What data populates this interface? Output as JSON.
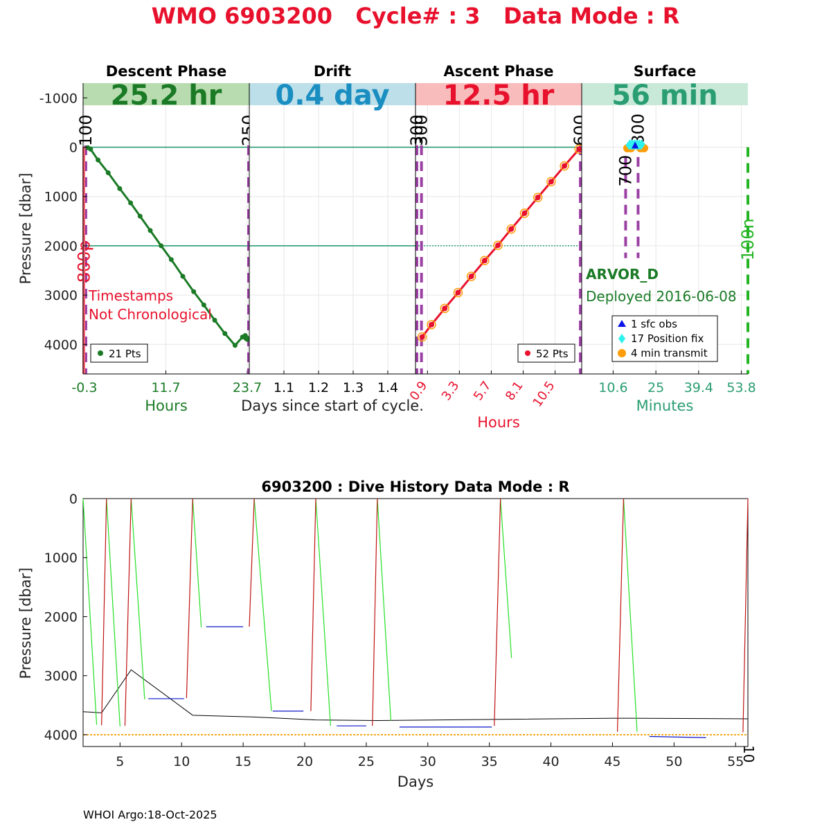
{
  "header": {
    "title": "WMO 6903200   Cycle# : 3   Data Mode : R",
    "title_color": "#e8112d"
  },
  "footer": {
    "credit": "WHOI Argo:18-Oct-2025"
  },
  "chart_data": [
    {
      "type": "line",
      "ylabel": "Pressure [dbar]",
      "ylim": [
        4600,
        -1300
      ],
      "yticks": [
        -1000,
        0,
        1000,
        2000,
        3000,
        4000
      ],
      "reference_lines": [
        0,
        2000
      ],
      "panels": [
        {
          "phase": "Descent Phase",
          "duration": "25.2 hr",
          "band_color": "#b8dcb0",
          "text_color": "#1a7a25",
          "xlim": [
            -0.5,
            24.0
          ],
          "xticks": [
            -0.3,
            11.7,
            23.7
          ],
          "xlabel": "Hours",
          "markers": [
            {
              "label": "100",
              "x": -0.1,
              "color": "#000000"
            },
            {
              "label": "250",
              "x": 23.9,
              "color": "#000000"
            },
            {
              "label": "800p",
              "x": -0.35,
              "color": "#e8112d"
            }
          ],
          "note_lines": [
            "Timestamps",
            "Not Chronological"
          ],
          "legend": "21 Pts",
          "series_color": "#1a7a25",
          "x": [
            0.2,
            0.6,
            1.7,
            3.2,
            4.9,
            6.5,
            7.9,
            9.4,
            11.0,
            12.5,
            14.2,
            15.8,
            17.3,
            18.9,
            20.4,
            21.9,
            23.0,
            23.5,
            23.7,
            23.6,
            23.4
          ],
          "y": [
            10,
            40,
            260,
            520,
            840,
            1130,
            1400,
            1690,
            2000,
            2280,
            2620,
            2930,
            3200,
            3510,
            3780,
            4020,
            3850,
            3880,
            3900,
            3860,
            3820
          ]
        },
        {
          "phase": "Drift",
          "duration": "0.4 day",
          "band_color": "#bcdfe9",
          "text_color": "#1a8ec1",
          "xlim": [
            1.0,
            1.48
          ],
          "xticks": [
            1.1,
            1.2,
            1.3,
            1.4
          ],
          "xlabel": "Days since start of cycle."
        },
        {
          "phase": "Ascent Phase",
          "duration": "12.5 hr",
          "band_color": "#f9bcbc",
          "text_color": "#e8112d",
          "xlim": [
            0.0,
            12.5
          ],
          "xticks": [
            0.9,
            3.3,
            5.7,
            8.1,
            10.5
          ],
          "xlabel": "Hours",
          "markers": [
            {
              "label": "300",
              "x": 0.1,
              "color": "#000000"
            },
            {
              "label": "300",
              "x": 0.45,
              "color": "#000000"
            },
            {
              "label": "600",
              "x": 12.4,
              "color": "#000000"
            }
          ],
          "legend": "52 Pts",
          "series_color": "#e8112d",
          "x": [
            0.5,
            1.2,
            2.2,
            3.2,
            4.2,
            5.2,
            6.2,
            7.2,
            8.2,
            9.2,
            10.2,
            11.2,
            12.3
          ],
          "y": [
            3850,
            3600,
            3270,
            2950,
            2620,
            2300,
            1990,
            1660,
            1340,
            1020,
            700,
            380,
            40
          ]
        },
        {
          "phase": "Surface",
          "duration": "56 min",
          "band_color": "#c8e9d8",
          "text_color": "#2a9d72",
          "xlim": [
            0,
            56
          ],
          "xticks": [
            10.6,
            25,
            39.4,
            53.8
          ],
          "xlabel": "Minutes",
          "markers": [
            {
              "label": "700",
              "x": 14.8,
              "color": "#000000"
            },
            {
              "label": "800",
              "x": 19.0,
              "color": "#000000"
            },
            {
              "label": "100n",
              "x": 56.0,
              "color": "#22b422"
            }
          ],
          "float_model": "ARVOR_D",
          "deployed": "Deployed 2016-06-08",
          "legend": [
            {
              "label": "1 sfc obs",
              "color": "#0a14e6",
              "shape": "triangle"
            },
            {
              "label": "17 Position fix",
              "color": "#2ef2ee",
              "shape": "diamond"
            },
            {
              "label": "4 min transmit",
              "color": "#ff9d0a",
              "shape": "circle"
            }
          ],
          "position_fix_x": [
            16.0,
            16.4,
            16.8,
            17.2,
            17.6,
            18.0,
            18.4,
            18.8,
            19.2,
            19.6,
            20.0,
            16.2,
            17.0,
            17.8,
            18.6,
            19.4,
            20.2
          ],
          "position_fix_y": [
            -40,
            -50,
            -40,
            -50,
            -40,
            -50,
            -40,
            -50,
            -40,
            -50,
            -40,
            -60,
            -60,
            -60,
            -60,
            -60,
            -60
          ],
          "transmit_x": [
            15.4,
            16.6,
            19.8,
            21.0
          ],
          "transmit_y": [
            20,
            20,
            20,
            20
          ],
          "sfc_obs_x": [
            18.0
          ],
          "sfc_obs_y": [
            -30
          ]
        }
      ]
    },
    {
      "type": "line",
      "title": "6903200 : Dive History      Data Mode : R",
      "xlabel": "Days",
      "ylabel": "Pressure [dbar]",
      "xlim": [
        2,
        56
      ],
      "ylim": [
        4200,
        0
      ],
      "xticks": [
        5,
        10,
        15,
        20,
        25,
        30,
        35,
        40,
        45,
        50,
        55
      ],
      "yticks": [
        0,
        1000,
        2000,
        3000,
        4000
      ],
      "edge_label": "10",
      "reference_depth": 4000,
      "descents": [
        {
          "x": [
            2.0,
            3.1
          ],
          "y": [
            0,
            3830
          ]
        },
        {
          "x": [
            3.9,
            5.0
          ],
          "y": [
            0,
            3860
          ]
        },
        {
          "x": [
            5.9,
            7.0
          ],
          "y": [
            0,
            3400
          ]
        },
        {
          "x": [
            10.9,
            11.6
          ],
          "y": [
            0,
            2180
          ]
        },
        {
          "x": [
            15.9,
            17.3
          ],
          "y": [
            0,
            3600
          ]
        },
        {
          "x": [
            20.9,
            22.1
          ],
          "y": [
            0,
            3850
          ]
        },
        {
          "x": [
            25.9,
            27.0
          ],
          "y": [
            0,
            3760
          ]
        },
        {
          "x": [
            35.9,
            36.8
          ],
          "y": [
            0,
            2700
          ]
        },
        {
          "x": [
            45.9,
            47.0
          ],
          "y": [
            0,
            3950
          ]
        }
      ],
      "ascents": [
        {
          "x": [
            3.5,
            3.9
          ],
          "y": [
            3840,
            0
          ]
        },
        {
          "x": [
            5.4,
            5.9
          ],
          "y": [
            3850,
            0
          ]
        },
        {
          "x": [
            10.4,
            10.9
          ],
          "y": [
            3380,
            0
          ]
        },
        {
          "x": [
            15.5,
            15.9
          ],
          "y": [
            2170,
            0
          ]
        },
        {
          "x": [
            20.5,
            20.9
          ],
          "y": [
            3600,
            0
          ]
        },
        {
          "x": [
            25.5,
            25.9
          ],
          "y": [
            3850,
            0
          ]
        },
        {
          "x": [
            35.4,
            35.9
          ],
          "y": [
            3850,
            0
          ]
        },
        {
          "x": [
            45.4,
            45.9
          ],
          "y": [
            3950,
            0
          ]
        },
        {
          "x": [
            55.6,
            56.0
          ],
          "y": [
            3960,
            0
          ]
        }
      ],
      "drifts": [
        {
          "x": [
            7.3,
            10.2
          ],
          "y": [
            3390,
            3390
          ]
        },
        {
          "x": [
            12.0,
            15.0
          ],
          "y": [
            2170,
            2170
          ]
        },
        {
          "x": [
            17.4,
            19.9
          ],
          "y": [
            3600,
            3600
          ]
        },
        {
          "x": [
            22.6,
            25.0
          ],
          "y": [
            3850,
            3850
          ]
        },
        {
          "x": [
            27.7,
            35.2
          ],
          "y": [
            3870,
            3870
          ]
        },
        {
          "x": [
            48.0,
            52.6
          ],
          "y": [
            4030,
            4050
          ]
        }
      ],
      "bathymetry": {
        "x": [
          2.0,
          3.5,
          5.9,
          10.9,
          15.9,
          20.9,
          25.9,
          35.9,
          45.9,
          56.0
        ],
        "y": [
          3610,
          3630,
          2900,
          3670,
          3700,
          3750,
          3760,
          3740,
          3720,
          3730
        ]
      }
    }
  ]
}
